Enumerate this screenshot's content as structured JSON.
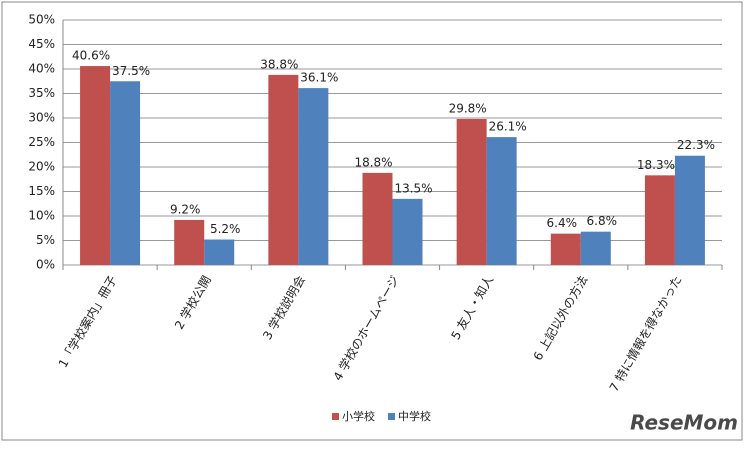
{
  "chart_data": {
    "type": "bar",
    "categories": [
      "1「学校案内」冊子",
      "2 学校公開",
      "3 学校説明会",
      "4 学校のホームページ",
      "5 友人・知人",
      "6 上記以外の方法",
      "7 特に情報を得なかった"
    ],
    "series": [
      {
        "name": "小学校",
        "color": "#c0504d",
        "values": [
          40.6,
          9.2,
          38.8,
          18.8,
          29.8,
          6.4,
          18.3
        ],
        "value_labels": [
          "40.6%",
          "9.2%",
          "38.8%",
          "18.8%",
          "29.8%",
          "6.4%",
          "18.3%"
        ]
      },
      {
        "name": "中学校",
        "color": "#4f81bd",
        "values": [
          37.5,
          5.2,
          36.1,
          13.5,
          26.1,
          6.8,
          22.3
        ],
        "value_labels": [
          "37.5%",
          "5.2%",
          "36.1%",
          "13.5%",
          "26.1%",
          "6.8%",
          "22.3%"
        ]
      }
    ],
    "ylim": [
      0,
      50
    ],
    "yticks": [
      {
        "value": 0,
        "label": "0%"
      },
      {
        "value": 5,
        "label": "5%"
      },
      {
        "value": 10,
        "label": "10%"
      },
      {
        "value": 15,
        "label": "15%"
      },
      {
        "value": 20,
        "label": "20%"
      },
      {
        "value": 25,
        "label": "25%"
      },
      {
        "value": 30,
        "label": "30%"
      },
      {
        "value": 35,
        "label": "35%"
      },
      {
        "value": 40,
        "label": "40%"
      },
      {
        "value": 45,
        "label": "45%"
      },
      {
        "value": 50,
        "label": "50%"
      }
    ],
    "grid": true,
    "legend": "bottom",
    "watermark": "ReseMom"
  }
}
